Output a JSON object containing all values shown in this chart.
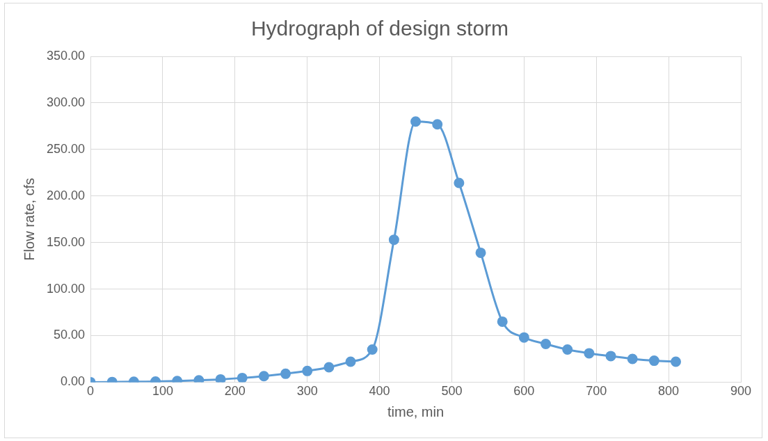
{
  "chart_data": {
    "type": "line",
    "title": "Hydrograph of design storm",
    "xlabel": "time, min",
    "ylabel": "Flow rate, cfs",
    "x": [
      0,
      30,
      60,
      90,
      120,
      150,
      180,
      210,
      240,
      270,
      300,
      330,
      360,
      390,
      420,
      450,
      480,
      510,
      540,
      570,
      600,
      630,
      660,
      690,
      720,
      750,
      780,
      810
    ],
    "series": [
      {
        "color": "#5b9bd5",
        "values": [
          0,
          0.2,
          0.4,
          0.7,
          1.2,
          2,
          3,
          4.5,
          6.5,
          9,
          12,
          16,
          22,
          35,
          153,
          280,
          277,
          214,
          139,
          65,
          48,
          41,
          35,
          31,
          28,
          25,
          23,
          22
        ]
      }
    ],
    "xlim": [
      0,
      900
    ],
    "xticks": [
      0,
      100,
      200,
      300,
      400,
      500,
      600,
      700,
      800,
      900
    ],
    "ylim": [
      0,
      350
    ],
    "yticks": [
      {
        "value": 0,
        "label": "0.00"
      },
      {
        "value": 50,
        "label": "50.00"
      },
      {
        "value": 100,
        "label": "100.00"
      },
      {
        "value": 150,
        "label": "150.00"
      },
      {
        "value": 200,
        "label": "200.00"
      },
      {
        "value": 250,
        "label": "250.00"
      },
      {
        "value": 300,
        "label": "300.00"
      },
      {
        "value": 350,
        "label": "350.00"
      }
    ],
    "grid": true,
    "legend": false,
    "marker": "circle",
    "line_style": "solid"
  }
}
